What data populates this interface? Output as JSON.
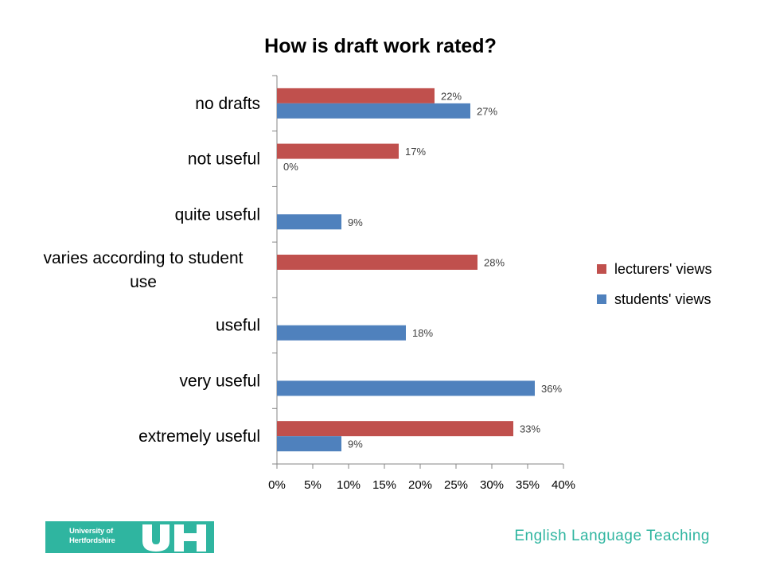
{
  "chart_data": {
    "type": "bar",
    "orientation": "horizontal",
    "title": "How is draft work rated?",
    "categories": [
      "no drafts",
      "not useful",
      "quite useful",
      "varies according to student use",
      "useful",
      "very useful",
      "extremely useful"
    ],
    "category_lines": [
      [
        "no drafts"
      ],
      [
        "not useful"
      ],
      [
        "quite useful"
      ],
      [
        "varies according to student",
        "use"
      ],
      [
        "useful"
      ],
      [
        "very useful"
      ],
      [
        "extremely useful"
      ]
    ],
    "series": [
      {
        "name": "lecturers' views",
        "color": "#c0504d",
        "values": [
          22,
          17,
          null,
          28,
          null,
          null,
          33
        ],
        "labels": [
          "22%",
          "17%",
          "",
          "28%",
          "",
          "",
          "33%"
        ]
      },
      {
        "name": "students' views",
        "color": "#4f81bd",
        "values": [
          27,
          0,
          9,
          null,
          18,
          36,
          9
        ],
        "labels": [
          "27%",
          "0%",
          "9%",
          "",
          "18%",
          "36%",
          "9%"
        ]
      }
    ],
    "xlim": [
      0,
      40
    ],
    "x_ticks": [
      "0%",
      "5%",
      "10%",
      "15%",
      "20%",
      "25%",
      "30%",
      "35%",
      "40%"
    ],
    "xlabel": "",
    "ylabel": "",
    "grid": false,
    "legend_position": "right"
  },
  "footer": {
    "logo_text_line1": "University of",
    "logo_text_line2": "Hertfordshire",
    "logo_mark": "UH",
    "department": "English Language Teaching"
  }
}
